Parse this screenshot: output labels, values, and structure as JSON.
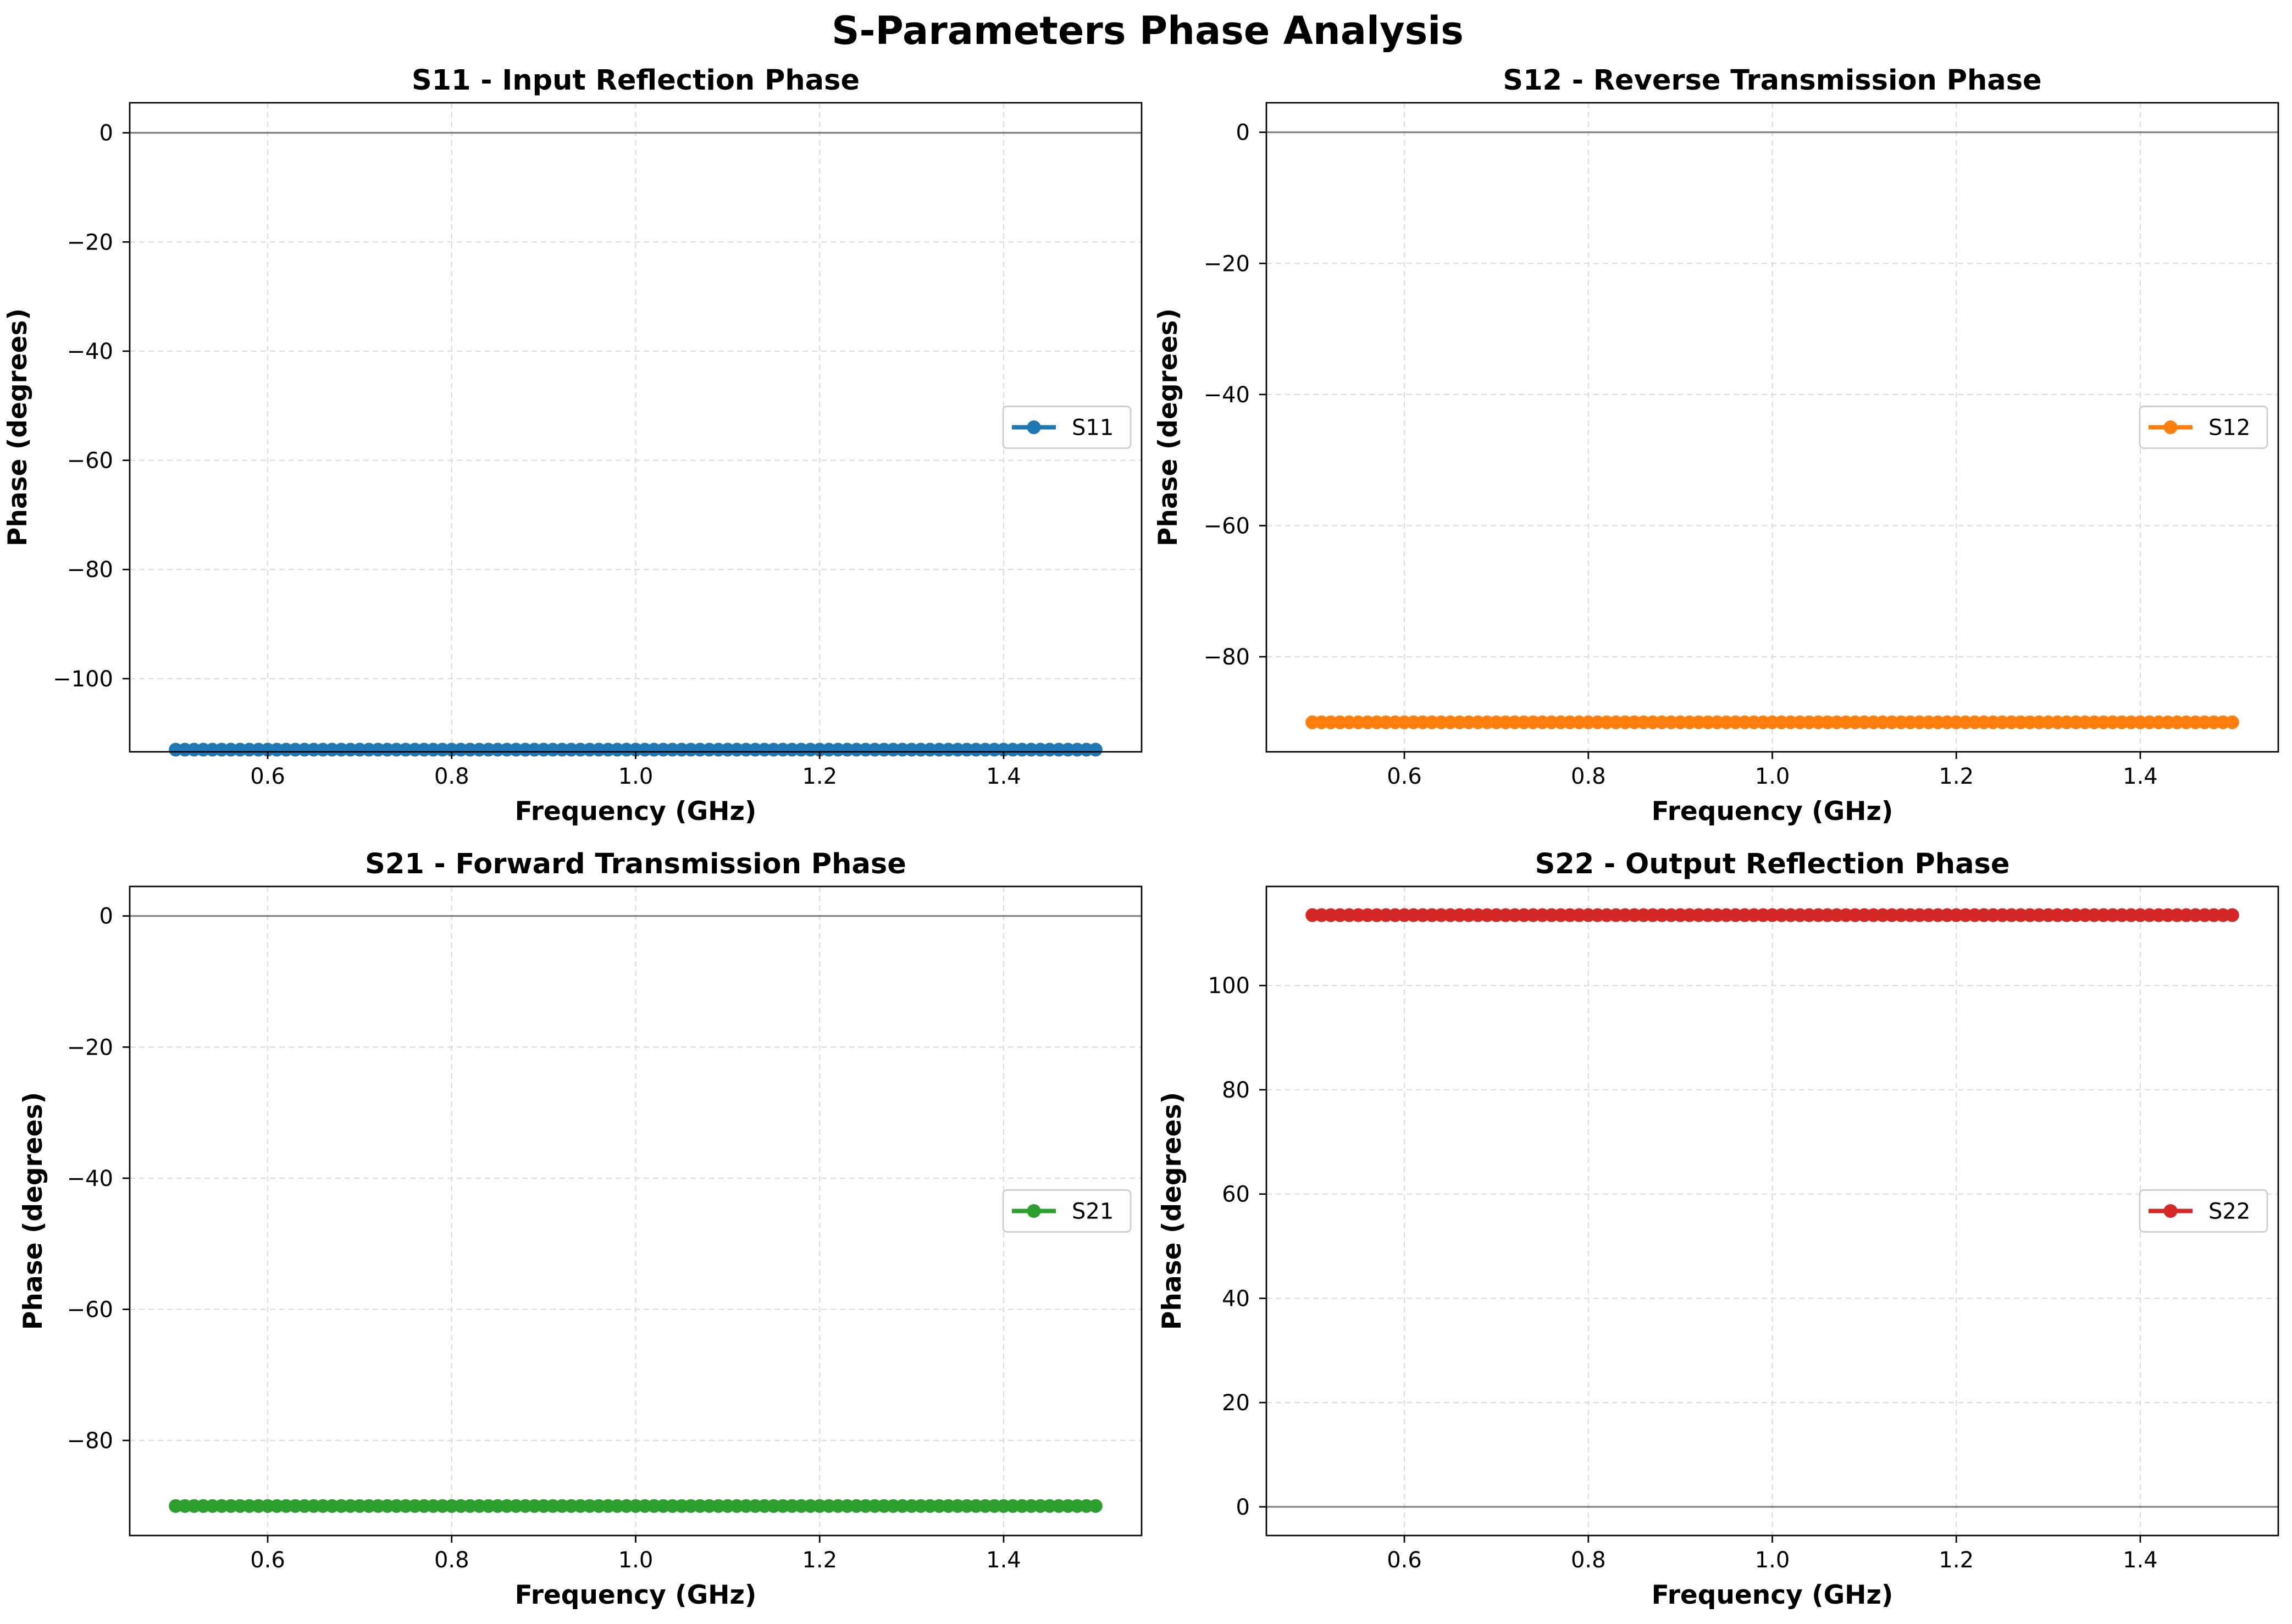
{
  "figure": {
    "title": "S-Parameters Phase Analysis"
  },
  "chart_data": [
    {
      "type": "line",
      "title": "S11 - Input Reflection Phase",
      "xlabel": "Frequency (GHz)",
      "ylabel": "Phase (degrees)",
      "xlim": [
        0.45,
        1.55
      ],
      "ylim": [
        -113.4,
        5.5
      ],
      "xticks": [
        0.6,
        0.8,
        1.0,
        1.2,
        1.4
      ],
      "xtick_labels": [
        "0.6",
        "0.8",
        "1.0",
        "1.2",
        "1.4"
      ],
      "yticks": [
        0,
        -20,
        -40,
        -60,
        -80,
        -100
      ],
      "ytick_labels": [
        "0",
        "−20",
        "−40",
        "−60",
        "−80",
        "−100"
      ],
      "grid": true,
      "reference_line_y": 0,
      "legend_position": "center-right",
      "x": {
        "start": 0.5,
        "stop": 1.5,
        "points": 101
      },
      "series": [
        {
          "name": "S11",
          "color": "#1f77b4",
          "y_constant": -113.0
        }
      ]
    },
    {
      "type": "line",
      "title": "S12 - Reverse Transmission Phase",
      "xlabel": "Frequency (GHz)",
      "ylabel": "Phase (degrees)",
      "xlim": [
        0.45,
        1.55
      ],
      "ylim": [
        -94.5,
        4.5
      ],
      "xticks": [
        0.6,
        0.8,
        1.0,
        1.2,
        1.4
      ],
      "xtick_labels": [
        "0.6",
        "0.8",
        "1.0",
        "1.2",
        "1.4"
      ],
      "yticks": [
        0,
        -20,
        -40,
        -60,
        -80
      ],
      "ytick_labels": [
        "0",
        "−20",
        "−40",
        "−60",
        "−80"
      ],
      "grid": true,
      "reference_line_y": 0,
      "legend_position": "center-right",
      "x": {
        "start": 0.5,
        "stop": 1.5,
        "points": 101
      },
      "series": [
        {
          "name": "S12",
          "color": "#ff7f0e",
          "y_constant": -90.0
        }
      ]
    },
    {
      "type": "line",
      "title": "S21 - Forward Transmission Phase",
      "xlabel": "Frequency (GHz)",
      "ylabel": "Phase (degrees)",
      "xlim": [
        0.45,
        1.55
      ],
      "ylim": [
        -94.5,
        4.5
      ],
      "xticks": [
        0.6,
        0.8,
        1.0,
        1.2,
        1.4
      ],
      "xtick_labels": [
        "0.6",
        "0.8",
        "1.0",
        "1.2",
        "1.4"
      ],
      "yticks": [
        0,
        -20,
        -40,
        -60,
        -80
      ],
      "ytick_labels": [
        "0",
        "−20",
        "−40",
        "−60",
        "−80"
      ],
      "grid": true,
      "reference_line_y": 0,
      "legend_position": "center-right",
      "x": {
        "start": 0.5,
        "stop": 1.5,
        "points": 101
      },
      "series": [
        {
          "name": "S21",
          "color": "#2ca02c",
          "y_constant": -90.0
        }
      ]
    },
    {
      "type": "line",
      "title": "S22 - Output Reflection Phase",
      "xlabel": "Frequency (GHz)",
      "ylabel": "Phase (degrees)",
      "xlim": [
        0.45,
        1.55
      ],
      "ylim": [
        -5.5,
        119
      ],
      "xticks": [
        0.6,
        0.8,
        1.0,
        1.2,
        1.4
      ],
      "xtick_labels": [
        "0.6",
        "0.8",
        "1.0",
        "1.2",
        "1.4"
      ],
      "yticks": [
        0,
        20,
        40,
        60,
        80,
        100
      ],
      "ytick_labels": [
        "0",
        "20",
        "40",
        "60",
        "80",
        "100"
      ],
      "grid": true,
      "reference_line_y": 0,
      "legend_position": "center-right",
      "x": {
        "start": 0.5,
        "stop": 1.5,
        "points": 101
      },
      "series": [
        {
          "name": "S22",
          "color": "#d62728",
          "y_constant": 113.5
        }
      ]
    }
  ]
}
